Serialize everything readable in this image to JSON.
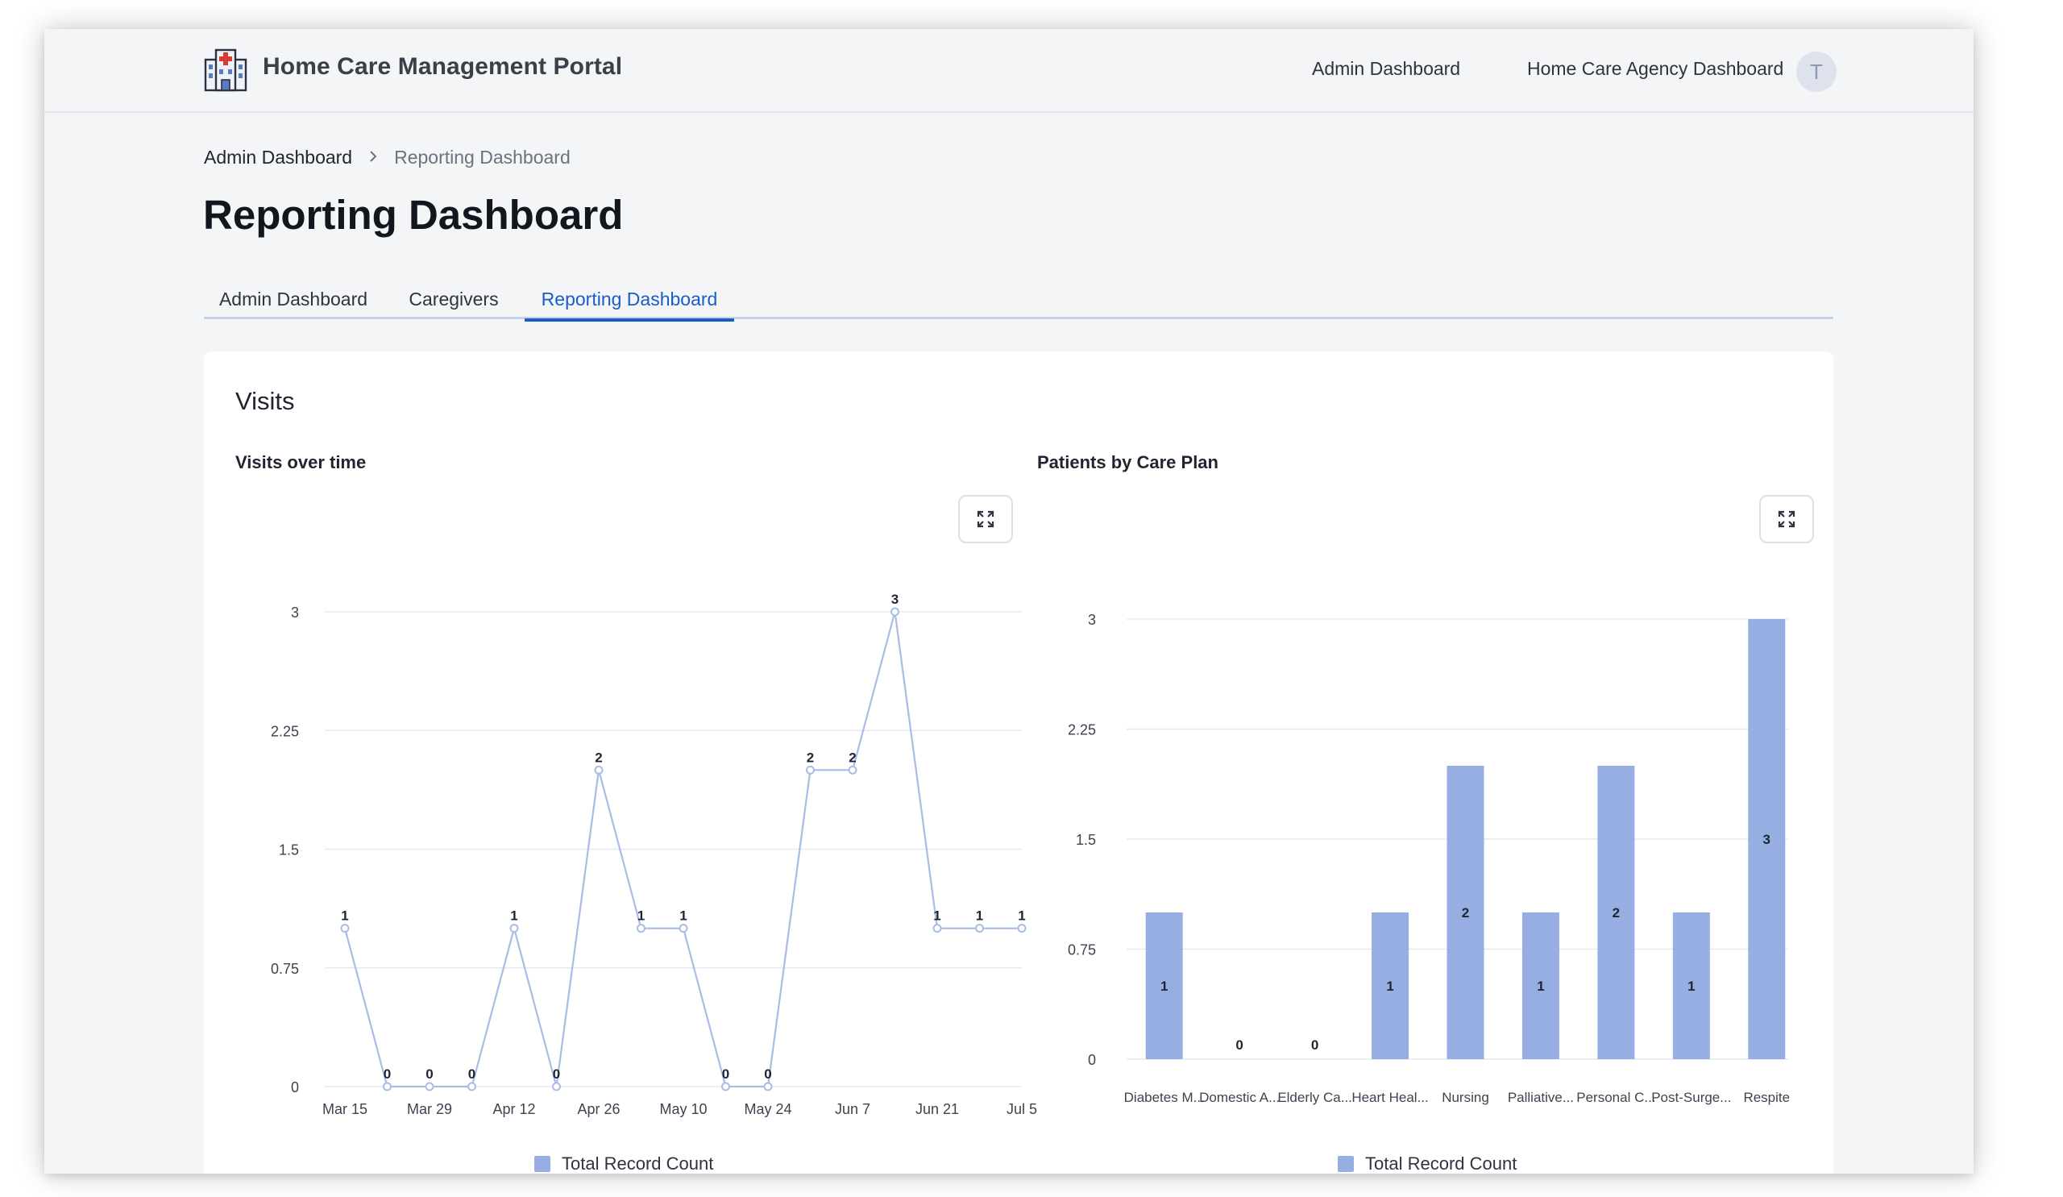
{
  "header": {
    "app_title": "Home Care Management Portal",
    "logo_icon": "hospital-icon",
    "nav": [
      "Admin Dashboard",
      "Home Care Agency Dashboard"
    ],
    "avatar_initial": "T"
  },
  "breadcrumb": {
    "items": [
      "Admin Dashboard",
      "Reporting Dashboard"
    ],
    "separator_icon": "chevron-right-icon"
  },
  "page_title": "Reporting Dashboard",
  "tabs": [
    {
      "label": "Admin Dashboard",
      "active": false
    },
    {
      "label": "Caregivers",
      "active": false
    },
    {
      "label": "Reporting Dashboard",
      "active": true
    }
  ],
  "colors": {
    "accent": "#1a5cc8",
    "series": "#97aee3",
    "line": "#a9bce6",
    "grid": "#e6e8ee"
  },
  "section": {
    "title": "Visits"
  },
  "charts": {
    "visits_title": "Visits over time",
    "care_plan_title": "Patients by Care Plan",
    "expand_icon": "expand-icon",
    "legend_label": "Total Record Count"
  },
  "chart_data": [
    {
      "type": "line",
      "title": "Visits over time",
      "x_tick_labels": [
        "Mar 15",
        "Mar 29",
        "Apr 12",
        "Apr 26",
        "May 10",
        "May 24",
        "Jun 7",
        "Jun 21",
        "Jul 5"
      ],
      "ylim": [
        0,
        3
      ],
      "y_ticks": [
        "0",
        "0.75",
        "1.5",
        "2.25",
        "3"
      ],
      "grid": true,
      "legend_position": "bottom",
      "series": [
        {
          "name": "Total Record Count",
          "values": [
            1,
            0,
            0,
            0,
            1,
            0,
            2,
            1,
            1,
            0,
            0,
            2,
            2,
            3,
            1,
            1,
            1
          ]
        }
      ]
    },
    {
      "type": "bar",
      "title": "Patients by Care Plan",
      "categories": [
        "Diabetes M...",
        "Domestic A...",
        "Elderly Ca...",
        "Heart Heal...",
        "Nursing",
        "Palliative...",
        "Personal C...",
        "Post-Surge...",
        "Respite"
      ],
      "ylim": [
        0,
        3
      ],
      "y_ticks": [
        "0",
        "0.75",
        "1.5",
        "2.25",
        "3"
      ],
      "grid": true,
      "legend_position": "bottom",
      "series": [
        {
          "name": "Total Record Count",
          "values": [
            1,
            0,
            0,
            1,
            2,
            1,
            2,
            1,
            3
          ]
        }
      ]
    }
  ]
}
